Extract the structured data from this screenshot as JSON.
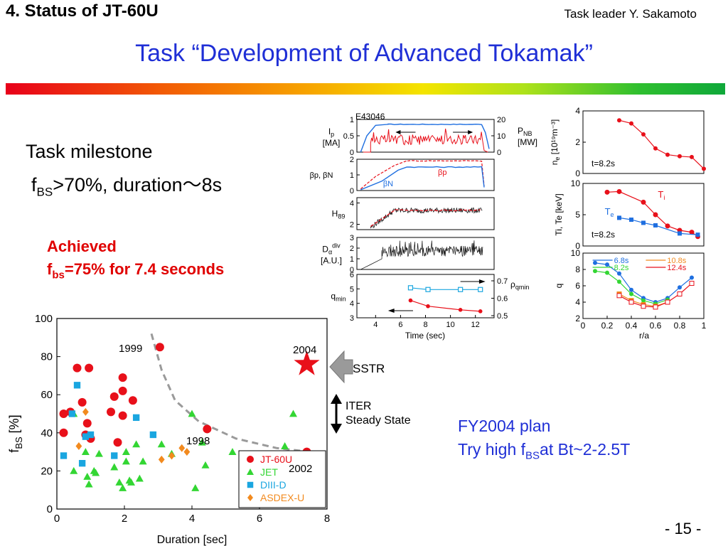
{
  "header": {
    "section": "4.  Status of JT-60U",
    "leader": "Task leader  Y. Sakamoto",
    "title": "Task “Development of Advanced Tokamak”"
  },
  "milestone": {
    "title": "Task milestone",
    "detail_sym": "f",
    "detail_sub": "BS",
    "detail_rest": ">70%, duration～8s"
  },
  "achieved": {
    "line1": "Achieved",
    "line2_sym": "f",
    "line2_sub": "bs",
    "line2_rest": "=75% for 7.4 seconds"
  },
  "plan": {
    "line1": "FY2004 plan",
    "line2_pre": "Try high f",
    "line2_sub": "BS",
    "line2_rest": "at Bt~2-2.5T"
  },
  "page_number": "- 15 -",
  "colors": {
    "title_blue": "#1f2fd6",
    "achieved_red": "#e00000",
    "jt60u": "#e8101a",
    "jet": "#33d633",
    "diiid": "#1aa6e0",
    "asdex": "#f28a1e",
    "trace_blue": "#1f6fe0",
    "trace_red": "#e8101a"
  },
  "annotations": {
    "sstr": "SSTR",
    "iter_l1": "ITER",
    "iter_l2": "Steady State",
    "year_1999": "1999",
    "year_1998": "1998",
    "year_2002": "2002",
    "year_2004": "2004"
  },
  "chart_data": [
    {
      "type": "scatter",
      "xlabel": "Duration [sec]",
      "ylabel_sym": "f",
      "ylabel_sub": "BS",
      "ylabel_unit": " [%]",
      "xlim": [
        0,
        8
      ],
      "ylim": [
        0,
        100
      ],
      "xticks": [
        "0",
        "2",
        "4",
        "6",
        "8"
      ],
      "yticks": [
        "0",
        "20",
        "40",
        "60",
        "80",
        "100"
      ],
      "legend": [
        "JT-60U",
        "JET",
        "DIII-D",
        "ASDEX-U"
      ],
      "legend_position": "bottom-right",
      "series": [
        {
          "name": "JT-60U",
          "marker": "circle",
          "points": [
            [
              0.2,
              50
            ],
            [
              0.2,
              40
            ],
            [
              0.4,
              51
            ],
            [
              0.6,
              74
            ],
            [
              0.95,
              74
            ],
            [
              0.75,
              56
            ],
            [
              0.9,
              45
            ],
            [
              0.85,
              39
            ],
            [
              1.0,
              37
            ],
            [
              1.6,
              51
            ],
            [
              1.7,
              59
            ],
            [
              1.8,
              35
            ],
            [
              1.95,
              62
            ],
            [
              1.95,
              49
            ],
            [
              1.95,
              69
            ],
            [
              2.25,
              57
            ],
            [
              3.05,
              85
            ],
            [
              4.45,
              42
            ],
            [
              7.4,
              30
            ]
          ]
        },
        {
          "name": "JET",
          "marker": "triangle",
          "points": [
            [
              0.5,
              50
            ],
            [
              0.5,
              20
            ],
            [
              0.85,
              30
            ],
            [
              0.9,
              17
            ],
            [
              0.95,
              13
            ],
            [
              1.1,
              20
            ],
            [
              1.15,
              19
            ],
            [
              1.25,
              29
            ],
            [
              1.7,
              22
            ],
            [
              1.85,
              14
            ],
            [
              1.95,
              11
            ],
            [
              2.05,
              30
            ],
            [
              2.05,
              25
            ],
            [
              2.15,
              15
            ],
            [
              2.2,
              14
            ],
            [
              2.35,
              34
            ],
            [
              2.45,
              16
            ],
            [
              2.55,
              25
            ],
            [
              3.1,
              34
            ],
            [
              3.4,
              29
            ],
            [
              4.0,
              50
            ],
            [
              4.1,
              11
            ],
            [
              4.3,
              35
            ],
            [
              4.4,
              23
            ],
            [
              5.2,
              30
            ],
            [
              6.75,
              33
            ],
            [
              7.0,
              50
            ]
          ]
        },
        {
          "name": "DIII-D",
          "marker": "square",
          "points": [
            [
              0.2,
              28
            ],
            [
              0.45,
              50
            ],
            [
              0.6,
              65
            ],
            [
              0.75,
              24
            ],
            [
              0.85,
              38
            ],
            [
              1.0,
              39
            ],
            [
              1.7,
              28
            ],
            [
              2.35,
              48
            ],
            [
              2.85,
              39
            ]
          ]
        },
        {
          "name": "ASDEX-U",
          "marker": "diamond",
          "points": [
            [
              0.65,
              33
            ],
            [
              0.85,
              51
            ],
            [
              3.1,
              26
            ],
            [
              3.4,
              28
            ],
            [
              3.7,
              32
            ],
            [
              3.85,
              30
            ]
          ]
        }
      ],
      "trend_line": [
        [
          2.8,
          92
        ],
        [
          3.1,
          73
        ],
        [
          3.5,
          57
        ],
        [
          4.2,
          46
        ],
        [
          5.3,
          37
        ],
        [
          6.5,
          32
        ],
        [
          7.5,
          30
        ]
      ],
      "ssstr_target": {
        "label": "2004",
        "x": 7.4,
        "y": 76
      }
    },
    {
      "type": "line",
      "shot": "E43046",
      "xlabel": "Time (sec)",
      "xlim": [
        2.5,
        13.5
      ],
      "xticks": [
        "4",
        "6",
        "8",
        "10",
        "12"
      ],
      "panels": [
        {
          "label_sym": "I",
          "label_sub": "p",
          "unit": "[MA]",
          "ylim": [
            0,
            1
          ],
          "yticks": [
            "0",
            "0.5",
            "1"
          ],
          "right_label_sym": "P",
          "right_label_sub": "NB",
          "right_unit": "[MW]",
          "right_yticks": [
            "0",
            "10",
            "20"
          ]
        },
        {
          "label": "βp, βN",
          "ylim": [
            0,
            2
          ],
          "yticks": [
            "0",
            "1",
            "2"
          ],
          "series_labels": [
            "βN",
            "βp"
          ]
        },
        {
          "label_sym": "H",
          "label_sub": "89",
          "ylim": [
            1.5,
            4.5
          ],
          "yticks": [
            "2",
            "4"
          ]
        },
        {
          "label_sym": "D",
          "label_sub": "α",
          "label_sup": "div",
          "unit": "[A.U.]",
          "ylim": [
            0,
            3
          ],
          "yticks": [
            "0",
            "1",
            "2",
            "3"
          ]
        },
        {
          "label_sym": "q",
          "label_sub": "min",
          "ylim": [
            3,
            6
          ],
          "yticks": [
            "3",
            "4",
            "5",
            "6"
          ],
          "right_label_sym": "ρ",
          "right_label_sub": "qmin",
          "right_yticks": [
            "0.5",
            "0.6",
            "0.7"
          ]
        }
      ],
      "qmin": {
        "t": [
          6.8,
          8.2,
          10.8,
          12.4
        ],
        "values": [
          4.2,
          3.8,
          3.55,
          3.45
        ]
      },
      "rho_qmin": {
        "t": [
          6.8,
          8.2,
          10.8,
          12.4
        ],
        "values": [
          0.66,
          0.65,
          0.65,
          0.65
        ]
      },
      "ip_flat": 0.85,
      "beta_p_flat": 1.9,
      "beta_n_flat": 1.5,
      "h89_flat": 3.3
    },
    {
      "type": "line",
      "xlabel": "r/a",
      "xticks": [
        "0",
        "0.2",
        "0.4",
        "0.6",
        "0.8",
        "1"
      ],
      "xlim": [
        0,
        1
      ],
      "panels": [
        {
          "label_sym": "n",
          "label_sub": "e",
          "unit": "[10¹⁹m⁻³]",
          "ylim": [
            0,
            4
          ],
          "yticks": [
            "0",
            "2",
            "4"
          ],
          "time": "t=8.2s",
          "series": [
            {
              "r": [
                0.3,
                0.4,
                0.5,
                0.6,
                0.7,
                0.8,
                0.9,
                1.0
              ],
              "values": [
                3.4,
                3.2,
                2.5,
                1.6,
                1.2,
                1.1,
                1.05,
                0.3
              ]
            }
          ]
        },
        {
          "label": "Ti, Te [keV]",
          "ylim": [
            0,
            10
          ],
          "yticks": [
            "0",
            "5",
            "10"
          ],
          "time": "t=8.2s",
          "series": [
            {
              "name": "T",
              "name_sub": "i",
              "r": [
                0.2,
                0.3,
                0.5,
                0.6,
                0.7,
                0.8,
                0.9,
                0.95
              ],
              "values": [
                8.6,
                8.7,
                7.0,
                5.0,
                3.2,
                2.5,
                2.2,
                1.5
              ]
            },
            {
              "name": "T",
              "name_sub": "e",
              "r": [
                0.3,
                0.4,
                0.5,
                0.6,
                0.8,
                0.95
              ],
              "values": [
                4.5,
                4.2,
                3.7,
                3.3,
                2.0,
                1.8
              ]
            }
          ]
        },
        {
          "label": "q",
          "ylim": [
            2,
            10
          ],
          "yticks": [
            "2",
            "4",
            "6",
            "8",
            "10"
          ],
          "series": [
            {
              "name": "6.8s",
              "r": [
                0.1,
                0.2,
                0.3,
                0.4,
                0.5,
                0.6,
                0.7,
                0.8,
                0.9
              ],
              "values": [
                8.8,
                8.6,
                7.5,
                5.5,
                4.5,
                4.0,
                4.5,
                5.8,
                7.0
              ]
            },
            {
              "name": "8.2s",
              "r": [
                0.1,
                0.2,
                0.3,
                0.4,
                0.5,
                0.6,
                0.7
              ],
              "values": [
                7.8,
                7.6,
                6.5,
                5.0,
                4.2,
                3.8,
                4.3
              ]
            },
            {
              "name": "10.8s",
              "r": [
                0.3,
                0.4,
                0.5,
                0.6,
                0.7
              ],
              "values": [
                5.0,
                4.2,
                3.7,
                3.5,
                4.0
              ]
            },
            {
              "name": "12.4s",
              "r": [
                0.3,
                0.4,
                0.5,
                0.6,
                0.7,
                0.8,
                0.9
              ],
              "values": [
                4.8,
                4.0,
                3.5,
                3.4,
                4.0,
                5.0,
                6.3
              ]
            }
          ]
        }
      ]
    }
  ]
}
